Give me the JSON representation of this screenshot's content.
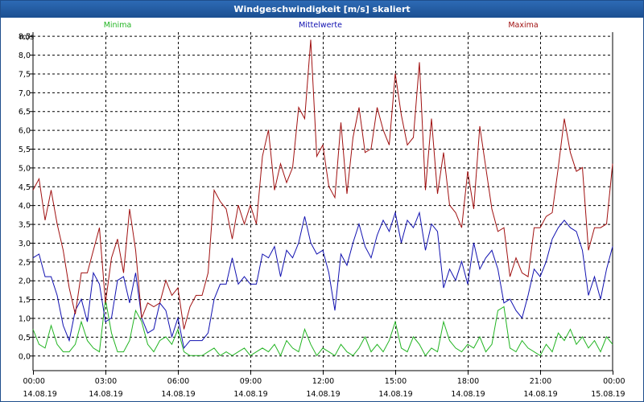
{
  "window": {
    "title": "Windgeschwindigkeit [m/s] skaliert"
  },
  "colors": {
    "min": "#22b422",
    "mean": "#1010b0",
    "max": "#a01010",
    "grid": "#000000"
  },
  "chart_data": {
    "type": "line",
    "title": "Windgeschwindigkeit [m/s] skaliert",
    "ylabel": "m/s",
    "ylim": [
      -0.4,
      8.6
    ],
    "xlim": [
      0,
      24
    ],
    "y_ticks": [
      "0,0",
      "0,5",
      "1,0",
      "1,5",
      "2,0",
      "2,5",
      "3,0",
      "3,5",
      "4,0",
      "4,5",
      "5,0",
      "5,5",
      "6,0",
      "6,5",
      "7,0",
      "7,5",
      "8,0",
      "8,5"
    ],
    "y_tick_values": [
      0,
      0.5,
      1,
      1.5,
      2,
      2.5,
      3,
      3.5,
      4,
      4.5,
      5,
      5.5,
      6,
      6.5,
      7,
      7.5,
      8,
      8.5
    ],
    "x_ticks": [
      {
        "time": "00:00",
        "date": "14.08.19"
      },
      {
        "time": "03:00",
        "date": "14.08.19"
      },
      {
        "time": "06:00",
        "date": "14.08.19"
      },
      {
        "time": "09:00",
        "date": "14.08.19"
      },
      {
        "time": "12:00",
        "date": "14.08.19"
      },
      {
        "time": "15:00",
        "date": "14.08.19"
      },
      {
        "time": "18:00",
        "date": "14.08.19"
      },
      {
        "time": "21:00",
        "date": "14.08.19"
      },
      {
        "time": "00:00",
        "date": "15.08.19"
      }
    ],
    "x_tick_values": [
      0,
      3,
      6,
      9,
      12,
      15,
      18,
      21,
      24
    ],
    "grid": true,
    "legend_placement": "top",
    "series": [
      {
        "name": "Minima",
        "color": "#22b422",
        "x": [
          0,
          0.25,
          0.5,
          0.75,
          1,
          1.25,
          1.5,
          1.75,
          2,
          2.25,
          2.5,
          2.75,
          3,
          3.25,
          3.5,
          3.75,
          4,
          4.25,
          4.5,
          4.75,
          5,
          5.25,
          5.5,
          5.75,
          6,
          6.25,
          6.5,
          6.75,
          7,
          7.25,
          7.5,
          7.75,
          8,
          8.25,
          8.5,
          8.75,
          9,
          9.25,
          9.5,
          9.75,
          10,
          10.25,
          10.5,
          10.75,
          11,
          11.25,
          11.5,
          11.75,
          12,
          12.25,
          12.5,
          12.75,
          13,
          13.25,
          13.5,
          13.75,
          14,
          14.25,
          14.5,
          14.75,
          15,
          15.25,
          15.5,
          15.75,
          16,
          16.25,
          16.5,
          16.75,
          17,
          17.25,
          17.5,
          17.75,
          18,
          18.25,
          18.5,
          18.75,
          19,
          19.25,
          19.5,
          19.75,
          20,
          20.25,
          20.5,
          20.75,
          21,
          21.25,
          21.5,
          21.75,
          22,
          22.25,
          22.5,
          22.75,
          23,
          23.25,
          23.5,
          23.75,
          24
        ],
        "values": [
          0.7,
          0.3,
          0.2,
          0.8,
          0.3,
          0.1,
          0.1,
          0.3,
          0.9,
          0.4,
          0.2,
          0.1,
          1.5,
          0.6,
          0.1,
          0.1,
          0.4,
          1.2,
          0.9,
          0.3,
          0.1,
          0.4,
          0.5,
          0.3,
          0.7,
          0.1,
          0.0,
          0.0,
          0.0,
          0.1,
          0.2,
          0.0,
          0.1,
          0.0,
          0.1,
          0.2,
          0.0,
          0.1,
          0.2,
          0.1,
          0.3,
          0.0,
          0.4,
          0.2,
          0.1,
          0.7,
          0.3,
          0.0,
          0.2,
          0.1,
          0.0,
          0.3,
          0.1,
          0.0,
          0.2,
          0.5,
          0.1,
          0.3,
          0.1,
          0.4,
          0.9,
          0.2,
          0.1,
          0.5,
          0.3,
          0.0,
          0.2,
          0.1,
          0.9,
          0.4,
          0.2,
          0.1,
          0.3,
          0.2,
          0.5,
          0.1,
          0.3,
          1.2,
          1.3,
          0.2,
          0.1,
          0.4,
          0.2,
          0.1,
          0.0,
          0.3,
          0.1,
          0.6,
          0.4,
          0.7,
          0.3,
          0.5,
          0.2,
          0.4,
          0.1,
          0.5,
          0.3
        ]
      },
      {
        "name": "Mittelwerte",
        "color": "#1010b0",
        "x": [
          0,
          0.25,
          0.5,
          0.75,
          1,
          1.25,
          1.5,
          1.75,
          2,
          2.25,
          2.5,
          2.75,
          3,
          3.25,
          3.5,
          3.75,
          4,
          4.25,
          4.5,
          4.75,
          5,
          5.25,
          5.5,
          5.75,
          6,
          6.25,
          6.5,
          6.75,
          7,
          7.25,
          7.5,
          7.75,
          8,
          8.25,
          8.5,
          8.75,
          9,
          9.25,
          9.5,
          9.75,
          10,
          10.25,
          10.5,
          10.75,
          11,
          11.25,
          11.5,
          11.75,
          12,
          12.25,
          12.5,
          12.75,
          13,
          13.25,
          13.5,
          13.75,
          14,
          14.25,
          14.5,
          14.75,
          15,
          15.25,
          15.5,
          15.75,
          16,
          16.25,
          16.5,
          16.75,
          17,
          17.25,
          17.5,
          17.75,
          18,
          18.25,
          18.5,
          18.75,
          19,
          19.25,
          19.5,
          19.75,
          20,
          20.25,
          20.5,
          20.75,
          21,
          21.25,
          21.5,
          21.75,
          22,
          22.25,
          22.5,
          22.75,
          23,
          23.25,
          23.5,
          23.75,
          24
        ],
        "values": [
          2.6,
          2.7,
          2.1,
          2.1,
          1.6,
          0.8,
          0.4,
          1.2,
          1.5,
          0.9,
          2.2,
          1.9,
          0.9,
          1.0,
          2.0,
          2.1,
          1.4,
          2.2,
          1.0,
          0.6,
          0.7,
          1.4,
          1.2,
          0.5,
          1.0,
          0.2,
          0.4,
          0.4,
          0.4,
          0.6,
          1.5,
          1.9,
          1.9,
          2.6,
          1.9,
          2.1,
          1.9,
          1.9,
          2.7,
          2.6,
          2.9,
          2.1,
          2.8,
          2.6,
          3.0,
          3.7,
          3.0,
          2.7,
          2.8,
          2.2,
          1.2,
          2.7,
          2.4,
          3.0,
          3.5,
          2.9,
          2.6,
          3.2,
          3.6,
          3.3,
          3.8,
          3.0,
          3.6,
          3.4,
          3.8,
          2.8,
          3.5,
          3.3,
          1.8,
          2.3,
          2.0,
          2.5,
          1.9,
          3.0,
          2.3,
          2.6,
          2.8,
          2.3,
          1.4,
          1.5,
          1.2,
          1.0,
          1.6,
          2.3,
          2.1,
          2.5,
          3.1,
          3.4,
          3.6,
          3.4,
          3.3,
          2.8,
          1.6,
          2.1,
          1.5,
          2.3,
          2.9
        ]
      },
      {
        "name": "Maxima",
        "color": "#a01010",
        "x": [
          0,
          0.25,
          0.5,
          0.75,
          1,
          1.25,
          1.5,
          1.75,
          2,
          2.25,
          2.5,
          2.75,
          3,
          3.25,
          3.5,
          3.75,
          4,
          4.25,
          4.5,
          4.75,
          5,
          5.25,
          5.5,
          5.75,
          6,
          6.25,
          6.5,
          6.75,
          7,
          7.25,
          7.5,
          7.75,
          8,
          8.25,
          8.5,
          8.75,
          9,
          9.25,
          9.5,
          9.75,
          10,
          10.25,
          10.5,
          10.75,
          11,
          11.25,
          11.5,
          11.75,
          12,
          12.25,
          12.5,
          12.75,
          13,
          13.25,
          13.5,
          13.75,
          14,
          14.25,
          14.5,
          14.75,
          15,
          15.25,
          15.5,
          15.75,
          16,
          16.25,
          16.5,
          16.75,
          17,
          17.25,
          17.5,
          17.75,
          18,
          18.25,
          18.5,
          18.75,
          19,
          19.25,
          19.5,
          19.75,
          20,
          20.25,
          20.5,
          20.75,
          21,
          21.25,
          21.5,
          21.75,
          22,
          22.25,
          22.5,
          22.75,
          23,
          23.25,
          23.5,
          23.75,
          24
        ],
        "values": [
          4.4,
          4.7,
          3.6,
          4.4,
          3.5,
          2.8,
          1.8,
          1.1,
          2.2,
          2.2,
          2.8,
          3.4,
          1.4,
          2.6,
          3.1,
          2.2,
          3.9,
          2.8,
          1.0,
          1.4,
          1.3,
          1.4,
          2.0,
          1.6,
          1.8,
          0.7,
          1.3,
          1.6,
          1.6,
          2.2,
          4.4,
          4.1,
          3.9,
          3.1,
          4.0,
          3.5,
          4.0,
          3.5,
          5.3,
          6.0,
          4.4,
          5.1,
          4.6,
          5.0,
          6.6,
          6.3,
          8.4,
          5.3,
          5.6,
          4.5,
          4.2,
          6.2,
          4.3,
          5.8,
          6.6,
          5.4,
          5.5,
          6.6,
          6.0,
          5.6,
          7.5,
          6.4,
          5.6,
          5.8,
          7.8,
          4.4,
          6.3,
          4.3,
          5.4,
          4.0,
          3.8,
          3.4,
          4.9,
          3.9,
          6.1,
          5.0,
          3.9,
          3.3,
          3.4,
          2.1,
          2.6,
          2.2,
          2.1,
          3.4,
          3.4,
          3.7,
          3.8,
          5.0,
          6.3,
          5.4,
          4.9,
          5.0,
          2.8,
          3.4,
          3.4,
          3.5,
          5.1
        ]
      }
    ]
  }
}
